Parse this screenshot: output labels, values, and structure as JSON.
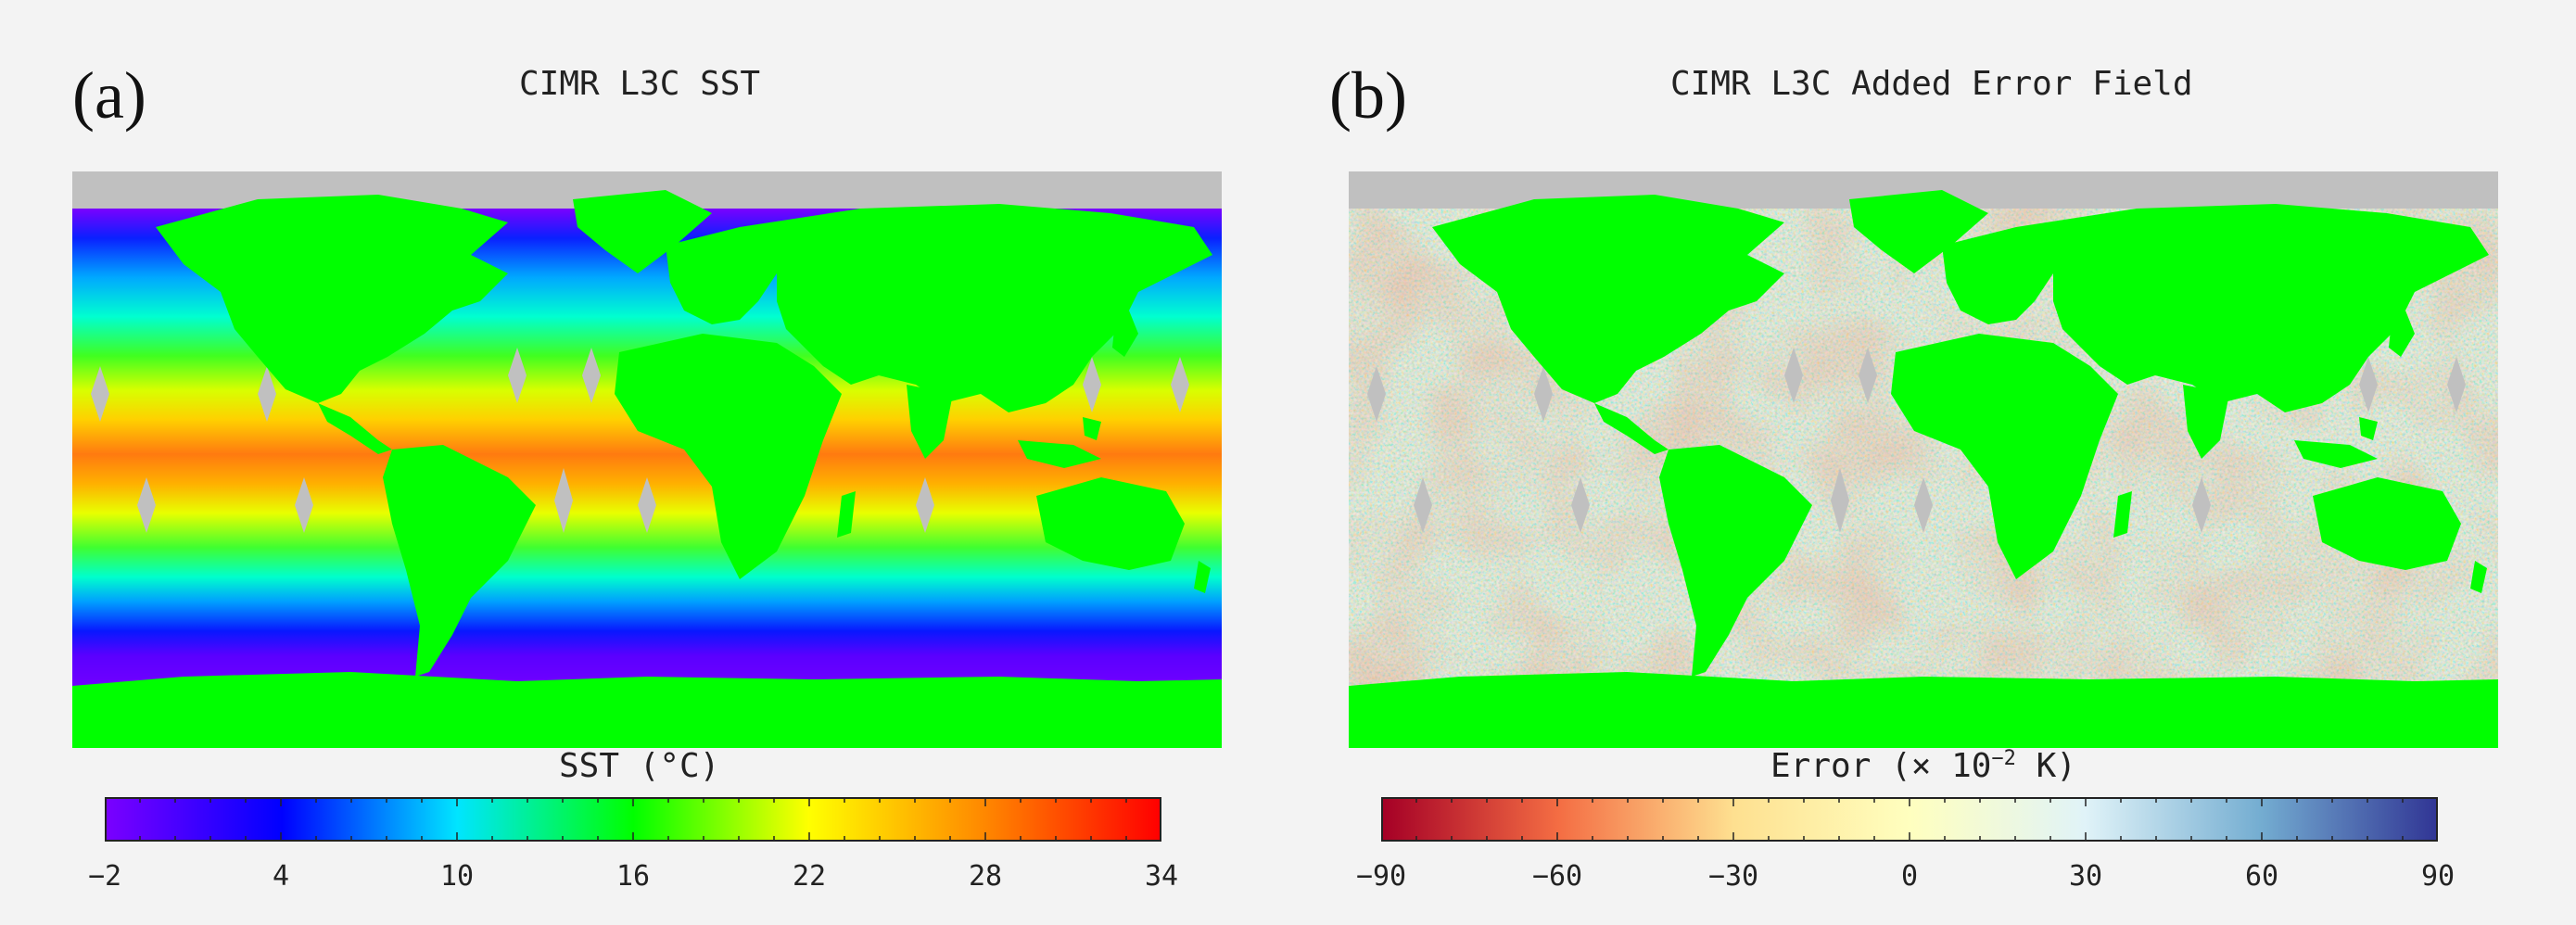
{
  "panels": {
    "a": {
      "label": "(a)",
      "title": "CIMR L3C SST",
      "colorbar_label": "SST (°C)",
      "ticks": [
        "−2",
        "4",
        "10",
        "16",
        "22",
        "28",
        "34"
      ],
      "colors": [
        "#7a00ff",
        "#0000ff",
        "#00e5ff",
        "#00ff00",
        "#ffff00",
        "#ff8800",
        "#ff0000"
      ]
    },
    "b": {
      "label": "(b)",
      "title": "CIMR L3C Added Error Field",
      "colorbar_label_main": "Error (× 10",
      "colorbar_label_exp": "−2",
      "colorbar_label_unit": " K)",
      "ticks": [
        "−90",
        "−60",
        "−30",
        "0",
        "30",
        "60",
        "90"
      ],
      "colors": [
        "#a50026",
        "#f46d43",
        "#fee090",
        "#ffffbf",
        "#e0f3f8",
        "#74add1",
        "#313695"
      ]
    }
  },
  "map": {
    "land_color": "#00ff00",
    "missing_color": "#c0c0c0",
    "description_icon": "world-map"
  }
}
